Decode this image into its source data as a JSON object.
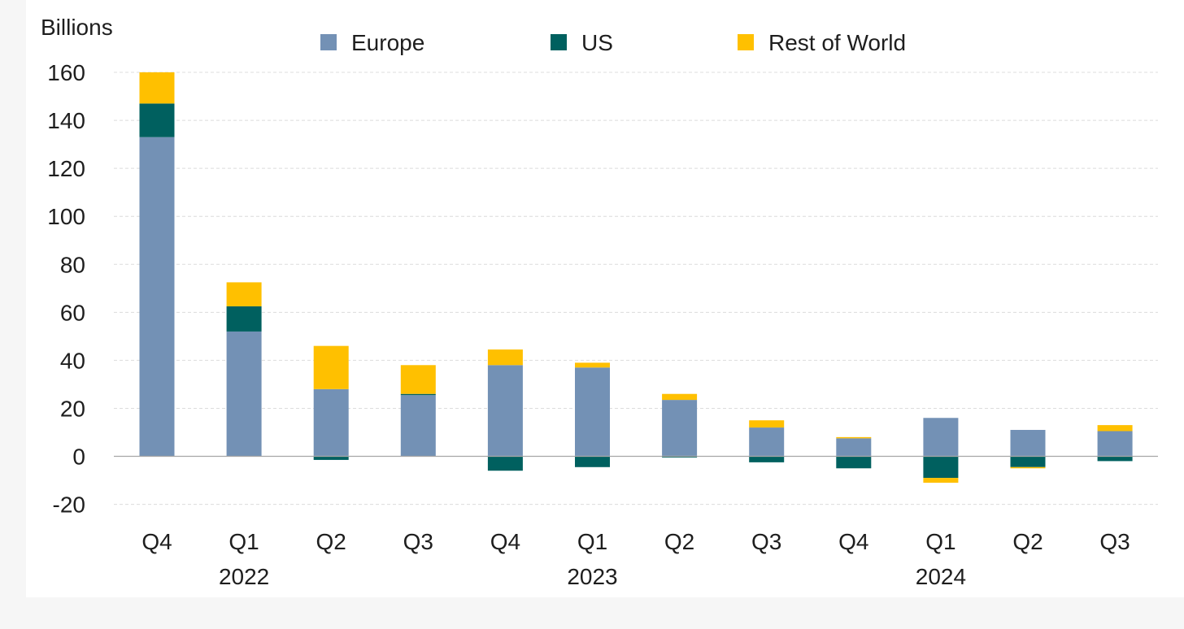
{
  "chart_data": {
    "type": "bar",
    "stacked": true,
    "ylabel": "Billions",
    "ylim": [
      -20,
      160
    ],
    "yticks": [
      -20,
      0,
      20,
      40,
      60,
      80,
      100,
      120,
      140,
      160
    ],
    "grid": true,
    "legend_position": "top",
    "categories": [
      "Q4",
      "Q1",
      "Q2",
      "Q3",
      "Q4",
      "Q1",
      "Q2",
      "Q3",
      "Q4",
      "Q1",
      "Q2",
      "Q3"
    ],
    "year_labels": [
      {
        "label": "2022",
        "category_index": 1
      },
      {
        "label": "2023",
        "category_index": 5
      },
      {
        "label": "2024",
        "category_index": 9
      }
    ],
    "series": [
      {
        "name": "Europe",
        "color": "#7391b5",
        "values": [
          133,
          52,
          28,
          25.5,
          38,
          37,
          23.5,
          12,
          7.5,
          16,
          11,
          10.5
        ]
      },
      {
        "name": "US",
        "color": "#00605f",
        "values": [
          14,
          10.5,
          -1.5,
          0.5,
          -6,
          -4.5,
          -0.5,
          -2.5,
          -5,
          -9,
          -4.5,
          -2
        ]
      },
      {
        "name": "Rest of World",
        "color": "#ffc000",
        "values": [
          13,
          10,
          18,
          12,
          6.5,
          2,
          2.5,
          3,
          0.5,
          -2,
          -0.5,
          2.5
        ]
      }
    ]
  }
}
